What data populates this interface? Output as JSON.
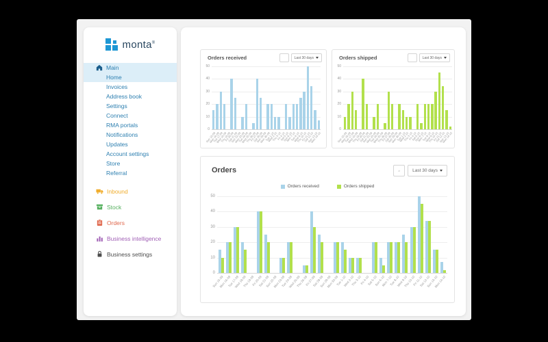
{
  "logo": {
    "text": "monta",
    "registered": "®",
    "icon_color": "#1e97d4",
    "text_color": "#28465f"
  },
  "sidebar": {
    "main_item": {
      "label": "Main"
    },
    "sub_items": [
      "Home",
      "Invoices",
      "Address book",
      "Settings",
      "Connect",
      "RMA portals",
      "Notifications",
      "Updates",
      "Account settings",
      "Store",
      "Referral"
    ],
    "sections": [
      {
        "label": "Inbound",
        "icon": "truck-icon",
        "color": "#f0ad2d"
      },
      {
        "label": "Stock",
        "icon": "box-icon",
        "color": "#56b05f"
      },
      {
        "label": "Orders",
        "icon": "clipboard-icon",
        "color": "#e0694e"
      },
      {
        "label": "Business intelligence",
        "icon": "bar-chart-icon",
        "color": "#a05fb5"
      },
      {
        "label": "Business settings",
        "icon": "lock-icon",
        "color": "#4d4d4d"
      }
    ],
    "link_color": "#2d7fb0",
    "highlight_color": "#dceef8"
  },
  "controls": {
    "range_label": "Last 30 days"
  },
  "chart_data": {
    "categories": [
      "Sun 15-09",
      "Mon 16-09",
      "Tue 17-09",
      "Wed 18-09",
      "Thu 19-09",
      "Fri 20-09",
      "Sat 21-09",
      "Sun 22-09",
      "Mon 23-09",
      "Tue 24-09",
      "Wed 25-09",
      "Thu 26-09",
      "Fri 27-09",
      "Sat 28-09",
      "Sun 29-09",
      "Mon 30-09",
      "Tue 1-10",
      "Wed 2-10",
      "Thu 3-10",
      "Fri 4-10",
      "Sat 5-10",
      "Sun 6-10",
      "Mon 7-10",
      "Tue 8-10",
      "Wed 9-10",
      "Thu 10-10",
      "Fri 11-10",
      "Sat 12-10",
      "Sun 13-10",
      "Mon 14-10"
    ],
    "charts": [
      {
        "type": "bar",
        "title": "Orders received",
        "range_label": "Last 30 days",
        "ylim": [
          0,
          50
        ],
        "yticks": [
          0,
          10,
          20,
          30,
          40,
          50
        ],
        "grid": true,
        "series": [
          {
            "name": "Orders received",
            "color": "#a9d3e9",
            "values": [
              15,
              20,
              30,
              20,
              0,
              40,
              25,
              0,
              10,
              20,
              0,
              5,
              40,
              25,
              0,
              20,
              20,
              10,
              10,
              0,
              20,
              10,
              20,
              20,
              25,
              30,
              50,
              34,
              15,
              7
            ]
          }
        ]
      },
      {
        "type": "bar",
        "title": "Orders shipped",
        "range_label": "Last 30 days",
        "ylim": [
          0,
          50
        ],
        "yticks": [
          0,
          10,
          20,
          30,
          40,
          50
        ],
        "grid": true,
        "series": [
          {
            "name": "Orders shipped",
            "color": "#b2e04c",
            "values": [
              10,
              20,
              30,
              15,
              0,
              40,
              20,
              0,
              10,
              20,
              0,
              5,
              30,
              20,
              0,
              20,
              15,
              10,
              10,
              0,
              20,
              5,
              20,
              20,
              20,
              30,
              45,
              34,
              15,
              2
            ]
          }
        ]
      },
      {
        "type": "bar",
        "title": "Orders",
        "range_label": "Last 30 days",
        "ylim": [
          0,
          50
        ],
        "yticks": [
          0,
          10,
          20,
          30,
          40,
          50
        ],
        "grid": true,
        "legend_position": "top-center",
        "series": [
          {
            "name": "Orders received",
            "color": "#a9d3e9",
            "values": [
              15,
              20,
              30,
              20,
              0,
              40,
              25,
              0,
              10,
              20,
              0,
              5,
              40,
              25,
              0,
              20,
              20,
              10,
              10,
              0,
              20,
              10,
              20,
              20,
              25,
              30,
              50,
              34,
              15,
              7
            ]
          },
          {
            "name": "Orders shipped",
            "color": "#b2e04c",
            "values": [
              10,
              20,
              30,
              15,
              0,
              40,
              20,
              0,
              10,
              20,
              0,
              5,
              30,
              20,
              0,
              20,
              15,
              10,
              10,
              0,
              20,
              5,
              20,
              20,
              20,
              30,
              45,
              34,
              15,
              2
            ]
          }
        ]
      }
    ]
  }
}
